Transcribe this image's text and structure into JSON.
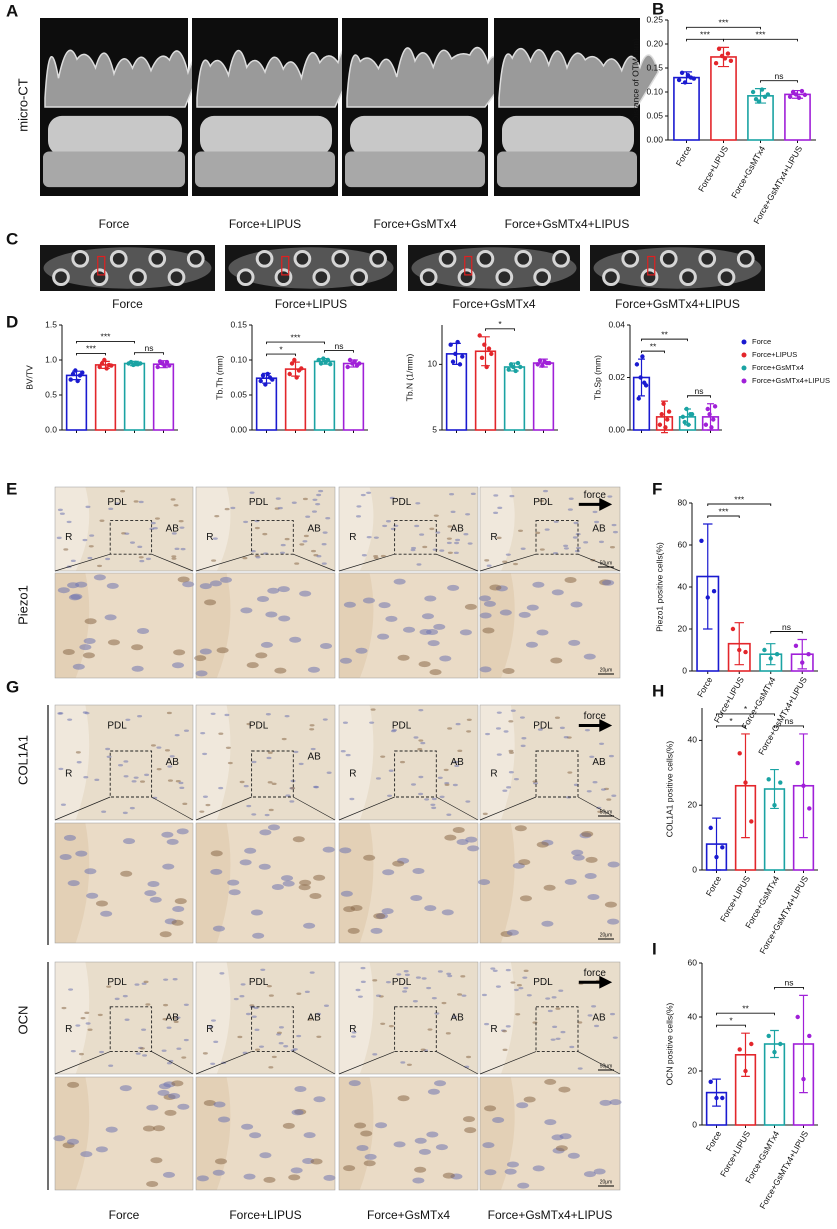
{
  "figure": {
    "panels": [
      "A",
      "B",
      "C",
      "D",
      "E",
      "F",
      "G",
      "H",
      "I"
    ],
    "row_labels": [
      "micro-CT",
      "Piezo1",
      "COL1A1",
      "OCN"
    ],
    "captions": {
      "A": [
        "Force",
        "Force+LIPUS",
        "Force+GsMTx4",
        "Force+GsMTx4+LIPUS"
      ],
      "C": [
        "Force",
        "Force+LIPUS",
        "Force+GsMTx4",
        "Force+GsMTx4+LIPUS"
      ],
      "E": [
        "Force",
        "Force+LIPUS",
        "Force+GsMTx4",
        "Force+GsMTx4+LIPUS"
      ],
      "G": [
        "Force",
        "Force+LIPUS",
        "Force+GsMTx4",
        "Force+GsMTx4+LIPUS"
      ]
    },
    "image_labels": [
      [
        "R",
        "PDL",
        "AB"
      ],
      [
        "R",
        "PDL",
        "AB"
      ],
      [
        "R",
        "PDL",
        "AB"
      ],
      [
        "R",
        "PDL",
        "AB",
        "force"
      ],
      [
        "R",
        "PDL",
        "AB"
      ],
      [
        "PDL",
        "AB"
      ],
      [
        "R",
        "PDL",
        "AB"
      ],
      [
        "R",
        "PDL",
        "AB",
        "force"
      ],
      [
        "R",
        "PDL",
        "AB"
      ],
      [
        "R",
        "PDL",
        "AB"
      ],
      [
        "R",
        "PDL",
        "AB"
      ],
      [
        "R",
        "PDL",
        "AB",
        "force"
      ]
    ],
    "scale_bars": [
      "50μm",
      "20μm"
    ],
    "legend": {
      "names": [
        "Force",
        "Force+LIPUS",
        "Force+GsMTx4",
        "Force+GsMTx4+LIPUS"
      ],
      "colors": [
        "#1a1ad0",
        "#e3262b",
        "#1aa3a3",
        "#a020d8"
      ]
    }
  },
  "chart_data": [
    {
      "type": "bar",
      "ylabel": "Distance of OTM(mm)",
      "categories": [
        "Force",
        "Force+LIPUS",
        "Force+GsMTx4",
        "Force+GsMTx4+LIPUS"
      ],
      "colors": [
        "#1a1ad0",
        "#e3262b",
        "#1aa3a3",
        "#a020d8"
      ],
      "values": [
        0.13,
        0.173,
        0.092,
        0.095
      ],
      "errors": [
        0.012,
        0.02,
        0.015,
        0.008
      ],
      "points": [
        [
          0.125,
          0.14,
          0.12,
          0.135,
          0.13,
          0.128
        ],
        [
          0.16,
          0.19,
          0.175,
          0.17,
          0.18,
          0.165
        ],
        [
          0.1,
          0.085,
          0.08,
          0.105,
          0.09,
          0.095
        ],
        [
          0.09,
          0.1,
          0.095,
          0.088,
          0.102,
          0.094
        ]
      ],
      "ylim": [
        0,
        0.25
      ],
      "yticks": [
        {
          "value": 0,
          "label": "0.00"
        },
        0.05,
        {
          "value": 0.1,
          "label": "0.10"
        },
        0.15,
        {
          "value": 0.2,
          "label": "0.20"
        },
        0.25
      ],
      "brackets": [
        {
          "between": [
            0,
            2
          ],
          "label": "***"
        },
        {
          "between": [
            0,
            1
          ],
          "label": "***"
        },
        {
          "between": [
            1,
            3
          ],
          "label": "***"
        },
        {
          "between": [
            2,
            3
          ],
          "label": "ns"
        }
      ]
    },
    {
      "type": "bar",
      "ylabel": "BV/TV",
      "categories": [
        null,
        null,
        null,
        null
      ],
      "colors": [
        "#1a1ad0",
        "#e3262b",
        "#1aa3a3",
        "#a020d8"
      ],
      "values": [
        0.78,
        0.93,
        0.95,
        0.94
      ],
      "errors": [
        0.06,
        0.05,
        0.03,
        0.05
      ],
      "points": [
        [
          0.72,
          0.8,
          0.85,
          0.7,
          0.78,
          0.82
        ],
        [
          0.9,
          0.95,
          1.0,
          0.88,
          0.93,
          0.92
        ],
        [
          0.95,
          0.97,
          0.93,
          0.96,
          0.94,
          0.95
        ],
        [
          0.9,
          0.98,
          0.95,
          0.92,
          0.97,
          0.92
        ]
      ],
      "ylim": [
        0,
        1.5
      ],
      "yticks": [
        {
          "value": 0,
          "label": "0.0"
        },
        0.5,
        {
          "value": 1,
          "label": "1.0"
        },
        1.5
      ],
      "brackets": [
        {
          "between": [
            0,
            2
          ],
          "label": "***"
        },
        {
          "between": [
            0,
            1
          ],
          "label": "***"
        },
        {
          "between": [
            2,
            3
          ],
          "label": "ns"
        }
      ]
    },
    {
      "type": "bar",
      "ylabel": "Tb.Th (mm)",
      "categories": [
        null,
        null,
        null,
        null
      ],
      "colors": [
        "#1a1ad0",
        "#e3262b",
        "#1aa3a3",
        "#a020d8"
      ],
      "values": [
        0.074,
        0.087,
        0.098,
        0.095
      ],
      "errors": [
        0.007,
        0.01,
        0.004,
        0.005
      ],
      "points": [
        [
          0.07,
          0.078,
          0.065,
          0.08,
          0.075,
          0.072
        ],
        [
          0.08,
          0.095,
          0.1,
          0.075,
          0.085,
          0.088
        ],
        [
          0.1,
          0.095,
          0.102,
          0.097,
          0.1,
          0.094
        ],
        [
          0.09,
          0.1,
          0.095,
          0.098,
          0.092,
          0.095
        ]
      ],
      "ylim": [
        0,
        0.15
      ],
      "yticks": [
        {
          "value": 0,
          "label": "0.00"
        },
        0.05,
        {
          "value": 0.1,
          "label": "0.10"
        },
        0.15
      ],
      "brackets": [
        {
          "between": [
            0,
            2
          ],
          "label": "***"
        },
        {
          "between": [
            0,
            1
          ],
          "label": "*"
        },
        {
          "between": [
            2,
            3
          ],
          "label": "ns"
        }
      ]
    },
    {
      "type": "bar",
      "ylabel": "Tb.N (1/mm)",
      "categories": [
        null,
        null,
        null,
        null
      ],
      "colors": [
        "#1a1ad0",
        "#e3262b",
        "#1aa3a3",
        "#a020d8"
      ],
      "values": [
        10.8,
        11.0,
        9.8,
        10.1
      ],
      "errors": [
        0.8,
        1.1,
        0.3,
        0.3
      ],
      "points": [
        [
          11.5,
          10.2,
          10.8,
          11.7,
          10,
          10.6
        ],
        [
          12.2,
          10.5,
          11.5,
          9.8,
          11.2,
          10.8
        ],
        [
          9.6,
          10,
          9.8,
          9.5,
          10.1,
          9.8
        ],
        [
          10,
          10.3,
          9.9,
          10.2,
          10.1,
          10.1
        ]
      ],
      "ylim": [
        5,
        13
      ],
      "yticks": [
        5,
        10
      ],
      "brackets": [
        {
          "between": [
            1,
            2
          ],
          "label": "*"
        }
      ]
    },
    {
      "type": "bar",
      "ylabel": "Tb.Sp (mm)",
      "categories": [
        null,
        null,
        null,
        null
      ],
      "colors": [
        "#1a1ad0",
        "#e3262b",
        "#1aa3a3",
        "#a020d8"
      ],
      "values": [
        0.02,
        0.005,
        0.005,
        0.005
      ],
      "errors": [
        0.007,
        0.006,
        0.003,
        0.005
      ],
      "points": [
        [
          0.025,
          0.012,
          0.02,
          0.028,
          0.018,
          0.017
        ],
        [
          0.002,
          0.006,
          0.01,
          0.001,
          0.004,
          0.007
        ],
        [
          0.005,
          0.003,
          0.008,
          0.002,
          0.006,
          0.006
        ],
        [
          0.002,
          0.008,
          0.006,
          0.001,
          0.004,
          0.009
        ]
      ],
      "ylim": [
        0,
        0.04
      ],
      "yticks": [
        {
          "value": 0,
          "label": "0.00"
        },
        0.02,
        0.04
      ],
      "brackets": [
        {
          "between": [
            0,
            2
          ],
          "label": "**"
        },
        {
          "between": [
            0,
            1
          ],
          "label": "**"
        },
        {
          "between": [
            2,
            3
          ],
          "label": "ns"
        }
      ]
    },
    {
      "type": "bar",
      "ylabel": "Piezo1 positive cells(%)",
      "categories": [
        "Force",
        "Force+LIPUS",
        "Force+GsMTx4",
        "Force+GsMTx4+LIPUS"
      ],
      "colors": [
        "#1a1ad0",
        "#e3262b",
        "#1aa3a3",
        "#a020d8"
      ],
      "values": [
        45,
        13,
        8,
        8
      ],
      "errors": [
        25,
        10,
        5,
        7
      ],
      "points": [
        [
          62,
          35,
          38
        ],
        [
          20,
          10,
          9
        ],
        [
          10,
          6,
          8
        ],
        [
          12,
          4,
          8
        ]
      ],
      "ylim": [
        0,
        80
      ],
      "yticks": [
        0,
        20,
        40,
        60,
        80
      ],
      "brackets": [
        {
          "between": [
            0,
            2
          ],
          "label": "***"
        },
        {
          "between": [
            0,
            1
          ],
          "label": "***"
        },
        {
          "between": [
            2,
            3
          ],
          "label": "ns"
        }
      ]
    },
    {
      "type": "bar",
      "ylabel": "COL1A1 positive cells(%)",
      "categories": [
        "Force",
        "Force+LIPUS",
        "Force+GsMTx4",
        "Force+GsMTx4+LIPUS"
      ],
      "colors": [
        "#1a1ad0",
        "#e3262b",
        "#1aa3a3",
        "#a020d8"
      ],
      "values": [
        8,
        26,
        25,
        26
      ],
      "errors": [
        8,
        16,
        6,
        16
      ],
      "points": [
        [
          13,
          4,
          7
        ],
        [
          36,
          27,
          15
        ],
        [
          28,
          20,
          27
        ],
        [
          33,
          26,
          19
        ]
      ],
      "ylim": [
        0,
        50
      ],
      "yticks": [
        0,
        20,
        40
      ],
      "brackets": [
        {
          "between": [
            0,
            2
          ],
          "label": "*"
        },
        {
          "between": [
            0,
            1
          ],
          "label": "*"
        },
        {
          "between": [
            2,
            3
          ],
          "label": "ns"
        }
      ]
    },
    {
      "type": "bar",
      "ylabel": "OCN positive cells(%)",
      "categories": [
        "Force",
        "Force+LIPUS",
        "Force+GsMTx4",
        "Force+GsMTx4+LIPUS"
      ],
      "colors": [
        "#1a1ad0",
        "#e3262b",
        "#1aa3a3",
        "#a020d8"
      ],
      "values": [
        12,
        26,
        30,
        30
      ],
      "errors": [
        5,
        8,
        5,
        18
      ],
      "points": [
        [
          16,
          10,
          10
        ],
        [
          28,
          20,
          30
        ],
        [
          33,
          27,
          30
        ],
        [
          40,
          17,
          33
        ]
      ],
      "ylim": [
        0,
        60
      ],
      "yticks": [
        0,
        20,
        40,
        60
      ],
      "brackets": [
        {
          "between": [
            0,
            2
          ],
          "label": "**"
        },
        {
          "between": [
            0,
            1
          ],
          "label": "*"
        },
        {
          "between": [
            2,
            3
          ],
          "label": "ns"
        }
      ]
    }
  ]
}
